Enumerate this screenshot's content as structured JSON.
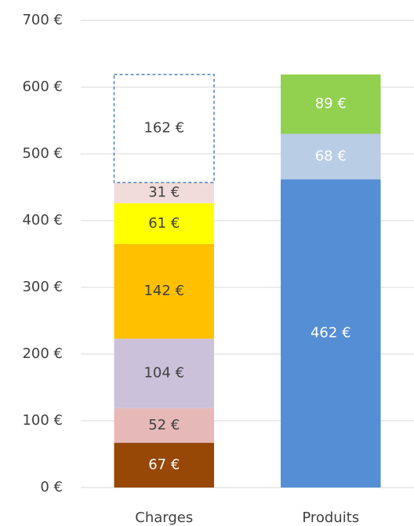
{
  "chart_data": {
    "type": "stacked_bar",
    "categories": [
      "Charges",
      "Produits"
    ],
    "series": [
      {
        "color": "#974706",
        "label_color": "#ffffff",
        "values": [
          67,
          null
        ],
        "value_labels": [
          "67 €",
          null
        ]
      },
      {
        "color": "#e6b9b8",
        "label_color": "#404040",
        "values": [
          52,
          null
        ],
        "value_labels": [
          "52 €",
          null
        ]
      },
      {
        "color": "#ccc1da",
        "label_color": "#404040",
        "values": [
          104,
          null
        ],
        "value_labels": [
          "104 €",
          null
        ]
      },
      {
        "color": "#ffc000",
        "label_color": "#404040",
        "values": [
          142,
          null
        ],
        "value_labels": [
          "142 €",
          null
        ]
      },
      {
        "color": "#ffff00",
        "label_color": "#404040",
        "values": [
          61,
          null
        ],
        "value_labels": [
          "61 €",
          null
        ]
      },
      {
        "color": "#f2dcdb",
        "label_color": "#404040",
        "values": [
          31,
          null
        ],
        "value_labels": [
          "31 €",
          null
        ]
      },
      {
        "color": "#4f81bd",
        "label_color": "#404040",
        "style": "dashed",
        "values": [
          162,
          null
        ],
        "value_labels": [
          "162 €",
          null
        ]
      },
      {
        "color": "#558ed5",
        "label_color": "#ffffff",
        "values": [
          null,
          462
        ],
        "value_labels": [
          null,
          "462 €"
        ]
      },
      {
        "color": "#b9cde5",
        "label_color": "#ffffff",
        "values": [
          null,
          68
        ],
        "value_labels": [
          null,
          "68 €"
        ]
      },
      {
        "color": "#92d050",
        "label_color": "#ffffff",
        "values": [
          null,
          89
        ],
        "value_labels": [
          null,
          "89 €"
        ]
      }
    ],
    "ylim": [
      0,
      700
    ],
    "yticks": [
      {
        "value": 0,
        "label": "0 €"
      },
      {
        "value": 100,
        "label": "100 €"
      },
      {
        "value": 200,
        "label": "200 €"
      },
      {
        "value": 300,
        "label": "300 €"
      },
      {
        "value": 400,
        "label": "400 €"
      },
      {
        "value": 500,
        "label": "500 €"
      },
      {
        "value": 600,
        "label": "600 €"
      },
      {
        "value": 700,
        "label": "700 €"
      }
    ],
    "grid": true
  }
}
